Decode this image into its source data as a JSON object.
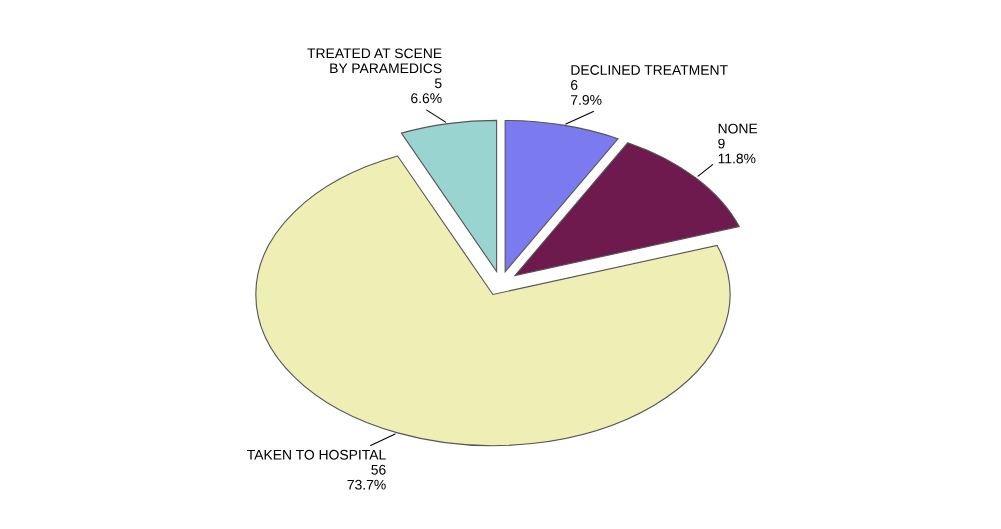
{
  "chart_data": {
    "type": "pie",
    "categories": [
      "DECLINED TREATMENT",
      "NONE",
      "TAKEN TO HOSPITAL",
      "TREATED AT SCENE\nBY PARAMEDICS"
    ],
    "values": [
      6,
      9,
      56,
      5
    ],
    "value_labels": [
      "6\n7.9%",
      "9\n11.8%",
      "56\n73.7%",
      "5\n6.6%"
    ],
    "colors": [
      "#7b7bef",
      "#6e1a4e",
      "#eeeeb5",
      "#99d4d0"
    ],
    "legend": false
  }
}
